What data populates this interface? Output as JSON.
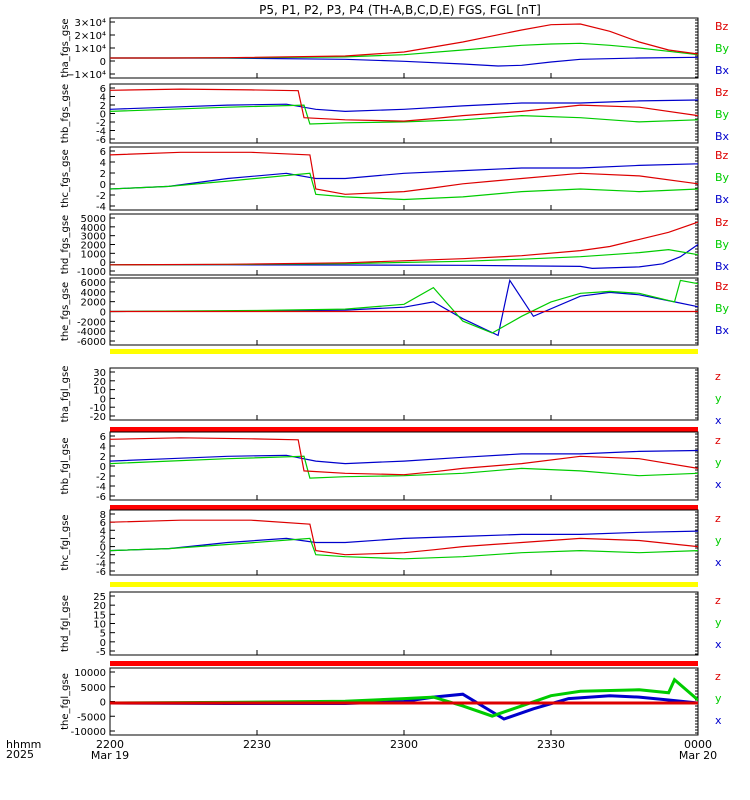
{
  "title": "P5, P1, P2, P3, P4 (TH-A,B,C,D,E) FGS, FGL [nT]",
  "time_axis": {
    "row_labels": [
      "hhmm",
      "2025"
    ],
    "ticks": [
      {
        "main": "2200",
        "sub": "Mar 19"
      },
      {
        "main": "2230",
        "sub": ""
      },
      {
        "main": "2300",
        "sub": ""
      },
      {
        "main": "2330",
        "sub": ""
      },
      {
        "main": "0000",
        "sub": "Mar 20"
      }
    ]
  },
  "colors": {
    "z": "#dd0000",
    "y": "#00cc00",
    "x": "#0000cc",
    "yellow_bar": "#ffff00",
    "red_bar": "#ff0000"
  },
  "chart_data": [
    {
      "type": "line",
      "ylabel": "tha_fgs_gse",
      "legend": [
        "Bz",
        "By",
        "Bx"
      ],
      "ytick_labels": [
        "3×10⁴",
        "2×10⁴",
        "1×10⁴",
        "0",
        "−1×10⁴"
      ],
      "series": [
        {
          "name": "Bz",
          "x": [
            0,
            10,
            20,
            40,
            50,
            60,
            70,
            75,
            80,
            85,
            90,
            95,
            100
          ],
          "y": [
            0,
            0,
            200,
            1500,
            4500,
            12000,
            21000,
            25000,
            25500,
            20000,
            12000,
            6000,
            3000
          ]
        },
        {
          "name": "By",
          "x": [
            0,
            10,
            20,
            40,
            50,
            60,
            70,
            75,
            80,
            85,
            90,
            95,
            100
          ],
          "y": [
            0,
            0,
            100,
            800,
            2500,
            6000,
            9500,
            10500,
            11000,
            9500,
            7500,
            5000,
            2500
          ]
        },
        {
          "name": "Bx",
          "x": [
            0,
            10,
            20,
            40,
            50,
            60,
            66,
            70,
            75,
            80,
            90,
            100
          ],
          "y": [
            0,
            0,
            -100,
            -1000,
            -2500,
            -4500,
            -6000,
            -5500,
            -3000,
            -1000,
            0,
            500
          ]
        }
      ]
    },
    {
      "type": "line",
      "ylabel": "thb_fgs_gse",
      "legend": [
        "Bz",
        "By",
        "Bx"
      ],
      "ytick_labels": [
        "6",
        "4",
        "2",
        "0",
        "-2",
        "-4",
        "-6"
      ],
      "series": [
        {
          "name": "Bz",
          "x": [
            0,
            12,
            24,
            32,
            33,
            40,
            50,
            55,
            60,
            65,
            70,
            80,
            90,
            100
          ],
          "y": [
            5.5,
            5.8,
            5.6,
            5.4,
            -1,
            -1.5,
            -1.8,
            -1.2,
            -0.5,
            0,
            0.5,
            2,
            1.5,
            -0.5
          ]
        },
        {
          "name": "By",
          "x": [
            0,
            10,
            20,
            33,
            34,
            40,
            50,
            60,
            70,
            80,
            90,
            100
          ],
          "y": [
            0.5,
            1,
            1.5,
            2,
            -2.5,
            -2.2,
            -2,
            -1.5,
            -0.5,
            -1,
            -2,
            -1.5
          ]
        },
        {
          "name": "Bx",
          "x": [
            0,
            10,
            20,
            30,
            35,
            40,
            50,
            60,
            70,
            80,
            90,
            100
          ],
          "y": [
            1,
            1.5,
            2,
            2.2,
            1,
            0.5,
            1,
            1.8,
            2.5,
            2.5,
            3,
            3.2
          ]
        }
      ]
    },
    {
      "type": "line",
      "ylabel": "thc_fgs_gse",
      "legend": [
        "Bz",
        "By",
        "Bx"
      ],
      "ytick_labels": [
        "6",
        "4",
        "2",
        "0",
        "-2",
        "-4"
      ],
      "series": [
        {
          "name": "Bz",
          "x": [
            0,
            12,
            24,
            34,
            35,
            40,
            50,
            55,
            60,
            65,
            70,
            80,
            90,
            100
          ],
          "y": [
            5.5,
            6,
            6,
            5.5,
            -1,
            -2,
            -1.5,
            -0.8,
            0,
            0.5,
            1,
            2,
            1.5,
            0
          ]
        },
        {
          "name": "By",
          "x": [
            0,
            10,
            20,
            34,
            35,
            40,
            50,
            60,
            70,
            80,
            90,
            100
          ],
          "y": [
            -1,
            -0.5,
            0.5,
            2,
            -2,
            -2.5,
            -3,
            -2.5,
            -1.5,
            -1,
            -1.5,
            -1
          ]
        },
        {
          "name": "Bx",
          "x": [
            0,
            10,
            20,
            30,
            35,
            40,
            50,
            60,
            70,
            80,
            90,
            100
          ],
          "y": [
            -1,
            -0.5,
            1,
            2,
            1,
            1,
            2,
            2.5,
            3,
            3,
            3.5,
            3.8
          ]
        }
      ]
    },
    {
      "type": "line",
      "ylabel": "thd_fgs_gse",
      "legend": [
        "Bz",
        "By",
        "Bx"
      ],
      "ytick_labels": [
        "5000",
        "4000",
        "3000",
        "2000",
        "1000",
        "0",
        "-1000"
      ],
      "series": [
        {
          "name": "Bz",
          "x": [
            0,
            20,
            40,
            60,
            70,
            80,
            85,
            90,
            95,
            100
          ],
          "y": [
            0,
            50,
            200,
            600,
            900,
            1400,
            1800,
            2500,
            3200,
            4200
          ]
        },
        {
          "name": "By",
          "x": [
            0,
            20,
            40,
            60,
            70,
            80,
            85,
            90,
            95,
            100
          ],
          "y": [
            0,
            30,
            120,
            350,
            550,
            800,
            1000,
            1200,
            1500,
            1000
          ]
        },
        {
          "name": "Bx",
          "x": [
            0,
            20,
            40,
            60,
            80,
            82,
            90,
            94,
            97,
            100
          ],
          "y": [
            0,
            0,
            -20,
            -50,
            -150,
            -350,
            -200,
            100,
            800,
            2000
          ]
        }
      ]
    },
    {
      "type": "line",
      "ylabel": "the_fgs_gse",
      "legend": [
        "Bz",
        "By",
        "Bx"
      ],
      "ytick_labels": [
        "6000",
        "4000",
        "2000",
        "0",
        "-2000",
        "-4000",
        "-6000"
      ],
      "series": [
        {
          "name": "Bz",
          "x": [
            0,
            100
          ],
          "y": [
            0,
            0
          ]
        },
        {
          "name": "By",
          "x": [
            0,
            25,
            40,
            50,
            55,
            60,
            65,
            70,
            75,
            80,
            85,
            90,
            96,
            97,
            100
          ],
          "y": [
            0,
            200,
            500,
            1500,
            5000,
            -2000,
            -4500,
            -1000,
            2000,
            3800,
            4200,
            3800,
            2000,
            6500,
            5800
          ]
        },
        {
          "name": "Bx",
          "x": [
            0,
            25,
            40,
            50,
            55,
            60,
            66,
            68,
            72,
            80,
            85,
            90,
            96,
            100
          ],
          "y": [
            0,
            100,
            300,
            900,
            2000,
            -1500,
            -5000,
            6500,
            -1000,
            3200,
            4000,
            3500,
            2000,
            1000
          ]
        }
      ]
    },
    {
      "type": "line",
      "ylabel": "tha_fgl_gse",
      "legend": [
        "z",
        "y",
        "x"
      ],
      "ytick_labels": [
        "30",
        "20",
        "10",
        "0",
        "-10",
        "-20"
      ],
      "series": []
    },
    {
      "type": "line",
      "ylabel": "thb_fgl_gse",
      "legend": [
        "z",
        "y",
        "x"
      ],
      "ytick_labels": [
        "6",
        "4",
        "2",
        "0",
        "-2",
        "-4",
        "-6"
      ],
      "series": [
        {
          "name": "z",
          "x": [
            0,
            12,
            24,
            32,
            33,
            40,
            50,
            55,
            60,
            65,
            70,
            80,
            90,
            100
          ],
          "y": [
            5.5,
            5.8,
            5.6,
            5.4,
            -1,
            -1.5,
            -1.8,
            -1.2,
            -0.5,
            0,
            0.5,
            2,
            1.5,
            -0.5
          ]
        },
        {
          "name": "y",
          "x": [
            0,
            10,
            20,
            33,
            34,
            40,
            50,
            60,
            70,
            80,
            90,
            100
          ],
          "y": [
            0.5,
            1,
            1.5,
            2,
            -2.5,
            -2.2,
            -2,
            -1.5,
            -0.5,
            -1,
            -2,
            -1.5
          ]
        },
        {
          "name": "x",
          "x": [
            0,
            10,
            20,
            30,
            35,
            40,
            50,
            60,
            70,
            80,
            90,
            100
          ],
          "y": [
            1,
            1.5,
            2,
            2.2,
            1,
            0.5,
            1,
            1.8,
            2.5,
            2.5,
            3,
            3.2
          ]
        }
      ]
    },
    {
      "type": "line",
      "ylabel": "thc_fgl_gse",
      "legend": [
        "z",
        "y",
        "x"
      ],
      "ytick_labels": [
        "8",
        "6",
        "4",
        "2",
        "0",
        "-2",
        "-4",
        "-6"
      ],
      "series": [
        {
          "name": "z",
          "x": [
            0,
            12,
            24,
            34,
            35,
            40,
            50,
            55,
            60,
            65,
            70,
            80,
            90,
            100
          ],
          "y": [
            6,
            6.5,
            6.5,
            5.5,
            -1,
            -2,
            -1.5,
            -0.8,
            0,
            0.5,
            1,
            2,
            1.5,
            0
          ]
        },
        {
          "name": "y",
          "x": [
            0,
            10,
            20,
            34,
            35,
            40,
            50,
            60,
            70,
            80,
            90,
            100
          ],
          "y": [
            -1,
            -0.5,
            0.5,
            2,
            -2,
            -2.5,
            -3,
            -2.5,
            -1.5,
            -1,
            -1.5,
            -1
          ]
        },
        {
          "name": "x",
          "x": [
            0,
            10,
            20,
            30,
            35,
            40,
            50,
            60,
            70,
            80,
            90,
            100
          ],
          "y": [
            -1,
            -0.5,
            1,
            2,
            1,
            1,
            2,
            2.5,
            3,
            3,
            3.5,
            3.8
          ]
        }
      ]
    },
    {
      "type": "line",
      "ylabel": "thd_fgl_gse",
      "legend": [
        "z",
        "y",
        "x"
      ],
      "ytick_labels": [
        "25",
        "20",
        "15",
        "10",
        "5",
        "0",
        "-5"
      ],
      "series": []
    },
    {
      "type": "line",
      "ylabel": "the_fgl_gse",
      "legend": [
        "z",
        "y",
        "x"
      ],
      "ytick_labels": [
        "10000",
        "5000",
        "0",
        "-5000",
        "-10000"
      ],
      "series": [
        {
          "name": "z",
          "x": [
            0,
            100
          ],
          "y": [
            0,
            0
          ]
        },
        {
          "name": "y",
          "x": [
            0,
            20,
            40,
            50,
            55,
            60,
            65,
            70,
            75,
            80,
            90,
            95,
            96,
            100
          ],
          "y": [
            0,
            200,
            600,
            1500,
            2000,
            -1000,
            -4500,
            -1000,
            2500,
            4000,
            4500,
            3500,
            8000,
            1000
          ]
        },
        {
          "name": "x",
          "x": [
            0,
            20,
            40,
            50,
            55,
            60,
            67,
            72,
            78,
            85,
            90,
            95,
            100
          ],
          "y": [
            0,
            -200,
            -200,
            500,
            2000,
            3000,
            -5500,
            -2000,
            1500,
            2500,
            2000,
            1000,
            0
          ]
        }
      ]
    }
  ]
}
